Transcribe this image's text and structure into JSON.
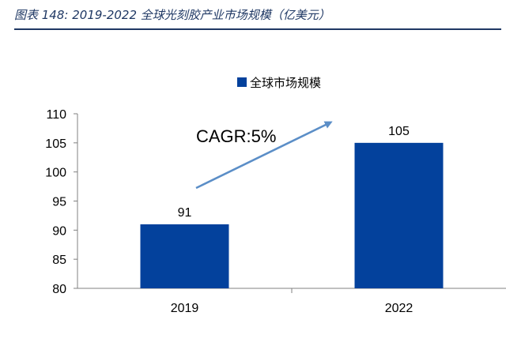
{
  "caption": {
    "prefix": "图表 148:",
    "years": "2019-2022",
    "title": "全球光刻胶产业市场规模（亿美元）"
  },
  "colors": {
    "bar": "#03419c",
    "arrow": "#5b8ec7",
    "axis": "#808080",
    "caption": "#1f3864"
  },
  "chart_data": {
    "type": "bar",
    "categories": [
      "2019",
      "2022"
    ],
    "series": [
      {
        "name": "全球市场规模",
        "values": [
          91,
          105
        ]
      }
    ],
    "ylim": [
      80,
      110
    ],
    "yticks": [
      80,
      85,
      90,
      95,
      100,
      105,
      110
    ],
    "data_labels": [
      "91",
      "105"
    ],
    "legend": {
      "position": "top-center",
      "entries": [
        "全球市场规模"
      ]
    },
    "annotation": {
      "text": "CAGR:5%",
      "arrow": "up-right"
    },
    "grid": false
  }
}
